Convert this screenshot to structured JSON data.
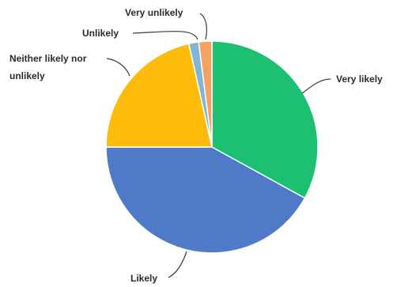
{
  "chart_data": {
    "type": "pie",
    "title": "",
    "categories": [
      "Very likely",
      "Likely",
      "Neither likely nor unlikely",
      "Unlikely",
      "Very unlikely"
    ],
    "values": [
      33,
      42,
      21.5,
      1.5,
      2
    ],
    "colors": [
      "#1dbf73",
      "#4f7ac7",
      "#fdbb0b",
      "#7fb5d5",
      "#f4a261"
    ],
    "legend": "none",
    "labels": {
      "very_likely": "Very likely",
      "likely": "Likely",
      "neither": "Neither likely nor unlikely",
      "unlikely": "Unlikely",
      "very_unlikely": "Very unlikely"
    }
  }
}
